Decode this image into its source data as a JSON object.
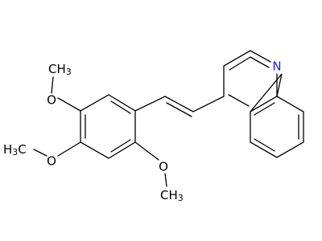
{
  "atoms": [
    {
      "text": "N"
    },
    {
      "text": "O"
    },
    {
      "text": "O"
    },
    {
      "text": "O"
    }
  ],
  "methyls": [
    {
      "main": "CH",
      "sub": "3"
    },
    {
      "main": "H",
      "sub": "3",
      "tail": "C"
    },
    {
      "main": "CH",
      "sub": "3"
    }
  ]
}
